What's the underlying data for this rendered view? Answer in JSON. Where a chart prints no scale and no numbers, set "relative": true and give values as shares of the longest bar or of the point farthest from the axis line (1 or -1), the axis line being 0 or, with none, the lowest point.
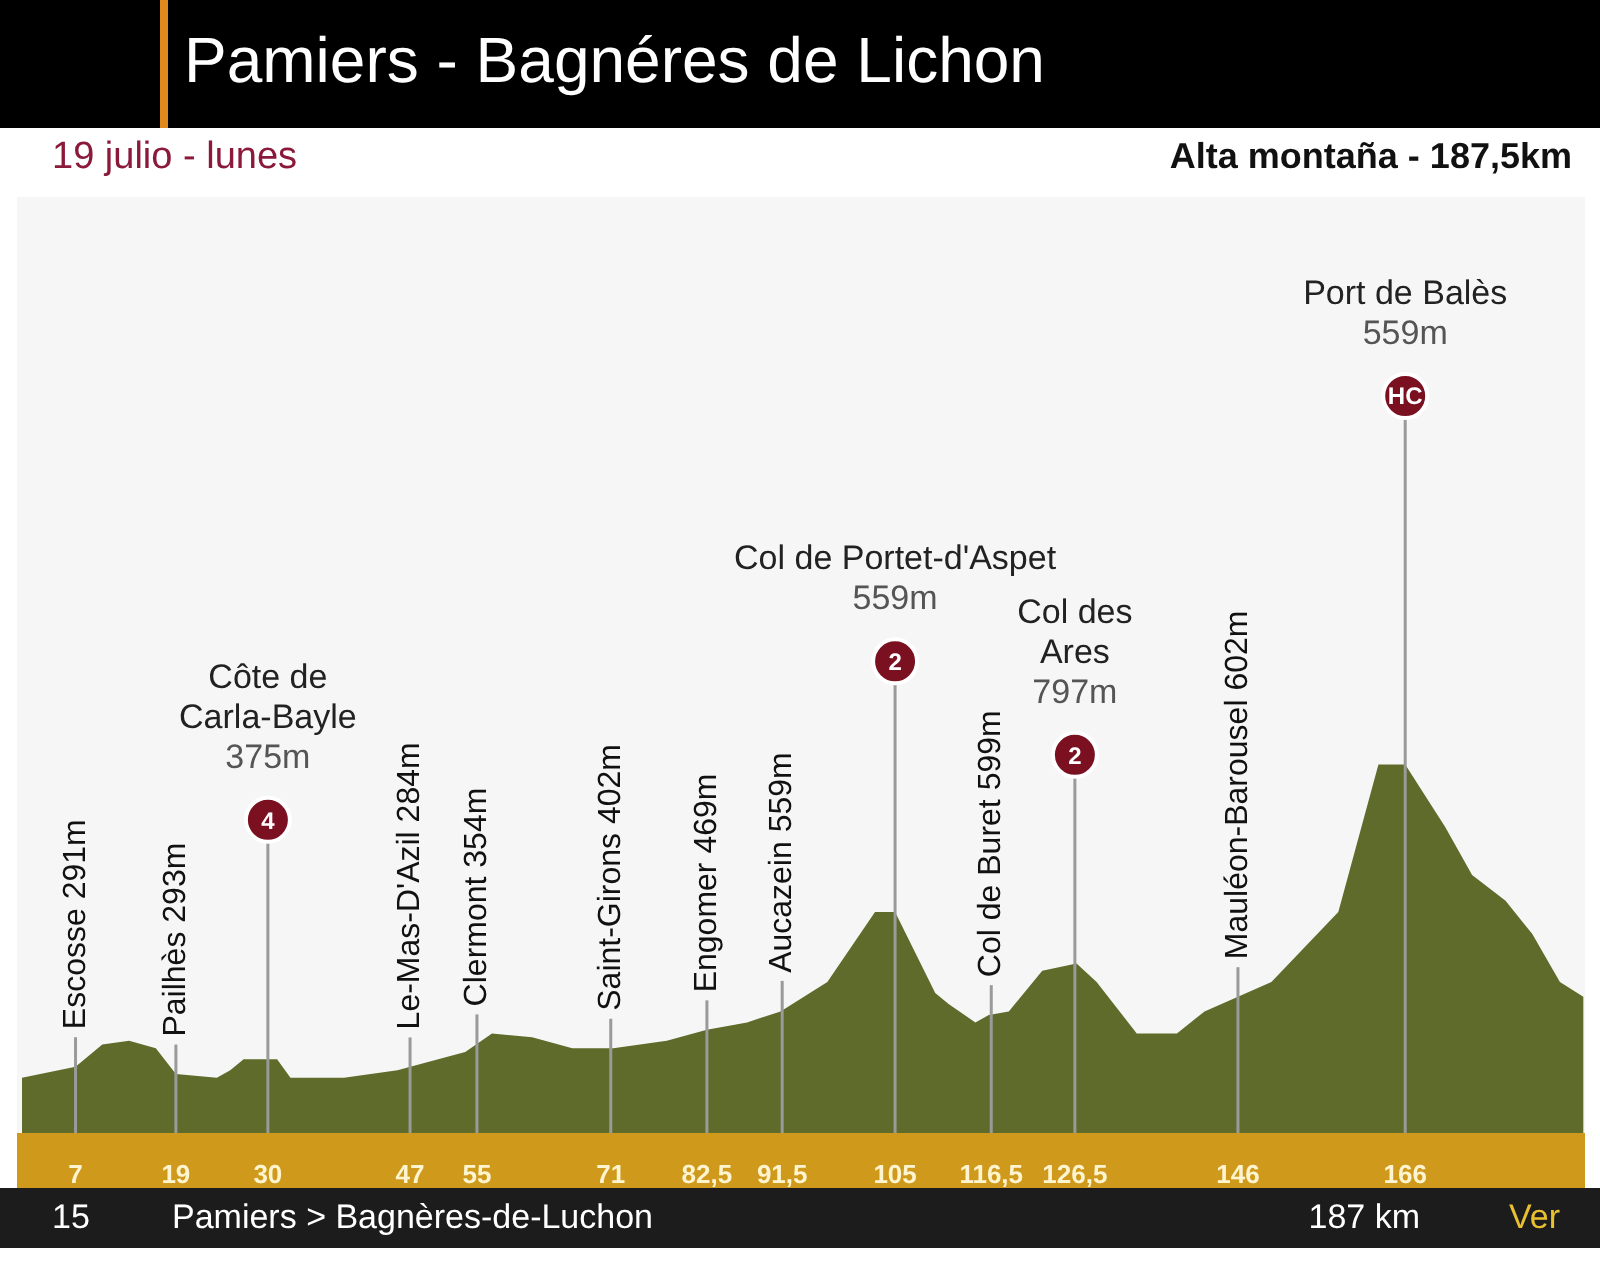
{
  "chart_data": {
    "type": "area",
    "relative": true,
    "title": "Pamiers - Bagnéres de Lichon",
    "subtitle": "19 julio - lunes",
    "color": "#5e6b2b",
    "x": [
      0.6,
      7,
      10.2,
      13.4,
      16.6,
      19,
      23.9,
      25.5,
      27.1,
      31.1,
      32.7,
      39.1,
      45.5,
      48.7,
      53.6,
      56.8,
      61.6,
      66.4,
      71.3,
      77.7,
      82.5,
      87.3,
      91.3,
      96.9,
      102.6,
      105,
      109.8,
      111.4,
      114.6,
      116.2,
      118.6,
      122.6,
      126.7,
      129.1,
      133.9,
      138.7,
      142,
      146,
      150,
      158,
      162.8,
      166,
      170.8,
      174,
      178,
      181.2,
      184.5,
      187.3
    ],
    "values": [
      0.15,
      0.18,
      0.24,
      0.25,
      0.23,
      0.16,
      0.15,
      0.17,
      0.2,
      0.2,
      0.15,
      0.15,
      0.17,
      0.19,
      0.22,
      0.27,
      0.26,
      0.23,
      0.23,
      0.25,
      0.28,
      0.3,
      0.33,
      0.41,
      0.6,
      0.6,
      0.38,
      0.35,
      0.3,
      0.32,
      0.33,
      0.44,
      0.46,
      0.41,
      0.27,
      0.27,
      0.33,
      0.37,
      0.41,
      0.6,
      1,
      1,
      0.83,
      0.7,
      0.63,
      0.54,
      0.41,
      0.37
    ],
    "xlim": [
      0,
      187.5
    ],
    "xticks": [
      7,
      19,
      30,
      47,
      55,
      71,
      {
        "value": 82.5,
        "label": "82,5"
      },
      {
        "value": 91.5,
        "label": "91,5"
      },
      105,
      {
        "value": 116.5,
        "label": "116,5"
      },
      {
        "value": 126.5,
        "label": "126,5"
      },
      146,
      166
    ],
    "ref_lines": [
      {
        "axis": "x",
        "value": 7,
        "label": "Escosse 291m"
      },
      {
        "axis": "x",
        "value": 19,
        "label": "Pailhès 293m"
      },
      {
        "axis": "x",
        "value": 30,
        "label": "Côte de\nCarla-Bayle\n375m"
      },
      {
        "axis": "x",
        "value": 47,
        "label": "Le-Mas-D'Azil 284m"
      },
      {
        "axis": "x",
        "value": 55,
        "label": "Clermont 354m"
      },
      {
        "axis": "x",
        "value": 71,
        "label": "Saint-Girons 402m"
      },
      {
        "axis": "x",
        "value": 82.5,
        "label": "Engomer 469m"
      },
      {
        "axis": "x",
        "value": 91.5,
        "label": "Aucazein 559m"
      },
      {
        "axis": "x",
        "value": 105,
        "label": "Col de Portet-d'Aspet\n559m"
      },
      {
        "axis": "x",
        "value": 116.5,
        "label": "Col de Buret 599m"
      },
      {
        "axis": "x",
        "value": 126.5,
        "label": "Col des\nAres\n797m"
      },
      {
        "axis": "x",
        "value": 146,
        "label": "Mauléon-Barousel 602m"
      },
      {
        "axis": "x",
        "value": 166,
        "label": "Port de Balès\n559m"
      }
    ],
    "annotations": [
      "4",
      "2",
      "2",
      "HC",
      "Alta montaña - 187,5km",
      "15",
      "Pamiers > Bagnères-de-Luchon",
      "187 km",
      "Ver"
    ]
  }
}
